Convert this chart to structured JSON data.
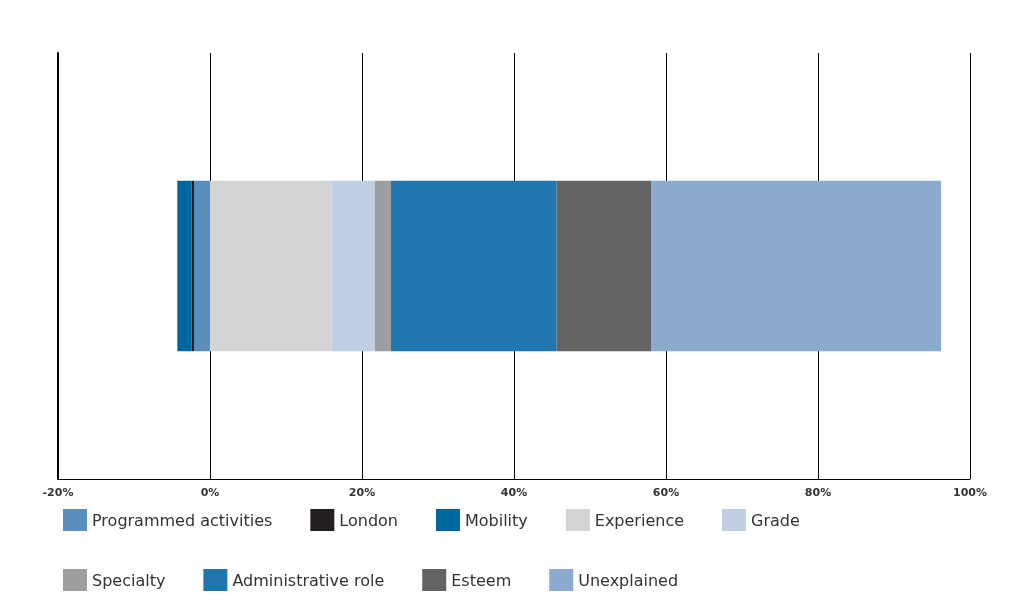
{
  "chart_data": {
    "type": "bar",
    "orientation": "horizontal",
    "stacked": true,
    "categories": [
      null
    ],
    "series": [
      {
        "name": "Programmed activities",
        "color": "#5b8fbd",
        "values": [
          -2.1
        ]
      },
      {
        "name": "London",
        "color": "#231f20",
        "values": [
          -0.3
        ]
      },
      {
        "name": "Mobility",
        "color": "#00669e",
        "values": [
          -1.9
        ]
      },
      {
        "name": "Experience",
        "color": "#d3d4d6",
        "values": [
          16.0
        ]
      },
      {
        "name": "Grade",
        "color": "#c0cfe3",
        "values": [
          5.7
        ]
      },
      {
        "name": "Specialty",
        "color": "#9d9ea0",
        "values": [
          2.1
        ]
      },
      {
        "name": "Administrative role",
        "color": "#1f77ad",
        "values": [
          21.8
        ]
      },
      {
        "name": "Esteem",
        "color": "#636466",
        "values": [
          12.5
        ]
      },
      {
        "name": "Unexplained",
        "color": "#8aabcd",
        "values": [
          38.1
        ]
      }
    ],
    "xlim": [
      -20,
      100
    ],
    "xticks": [
      {
        "value": -20,
        "label": "-20%"
      },
      {
        "value": 0,
        "label": "0%"
      },
      {
        "value": 20,
        "label": "20%"
      },
      {
        "value": 40,
        "label": "40%"
      },
      {
        "value": 60,
        "label": "60%"
      },
      {
        "value": 80,
        "label": "80%"
      },
      {
        "value": 100,
        "label": "100%"
      }
    ],
    "grid": "x",
    "legend": "bottom"
  }
}
